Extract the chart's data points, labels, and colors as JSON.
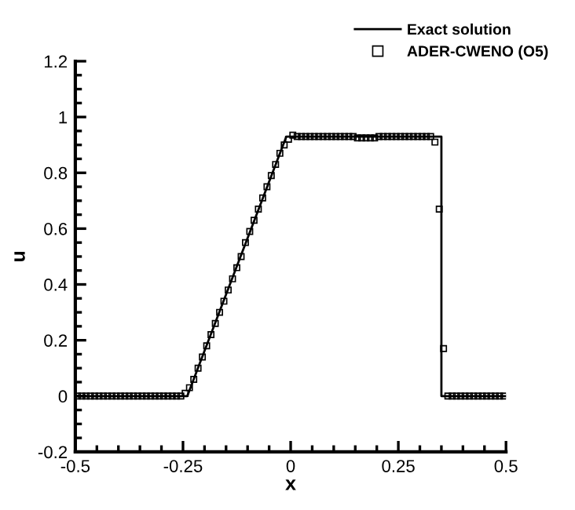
{
  "chart_data": {
    "type": "line",
    "xlabel": "x",
    "ylabel": "u",
    "xlim": [
      -0.5,
      0.5
    ],
    "ylim": [
      -0.2,
      1.2
    ],
    "xticks": [
      {
        "value": -0.5,
        "label": "-0.5"
      },
      {
        "value": -0.25,
        "label": "-0.25"
      },
      0,
      0.25,
      0.5
    ],
    "yticks": [
      {
        "value": -0.2,
        "label": "-0.2"
      },
      0,
      0.2,
      0.4,
      0.6,
      0.8,
      1,
      1.2
    ],
    "grid": false,
    "legend": "top right",
    "series": [
      {
        "name": "Exact solution",
        "color": "#000000",
        "marker": "none",
        "line_style": "solid",
        "x": [
          -0.5,
          -0.24,
          -0.01,
          0.35,
          0.35,
          0.5
        ],
        "values": [
          0,
          0,
          0.93,
          0.93,
          0,
          0
        ]
      },
      {
        "name": "ADER-CWENO (O5)",
        "type": "scatter",
        "color": "#000000",
        "marker": "square",
        "x": [
          -0.495,
          -0.485,
          -0.475,
          -0.465,
          -0.455,
          -0.445,
          -0.435,
          -0.425,
          -0.415,
          -0.405,
          -0.395,
          -0.385,
          -0.375,
          -0.365,
          -0.355,
          -0.345,
          -0.335,
          -0.325,
          -0.315,
          -0.305,
          -0.295,
          -0.285,
          -0.275,
          -0.265,
          -0.255,
          -0.245,
          -0.235,
          -0.225,
          -0.215,
          -0.205,
          -0.195,
          -0.185,
          -0.175,
          -0.165,
          -0.155,
          -0.145,
          -0.135,
          -0.125,
          -0.115,
          -0.105,
          -0.095,
          -0.085,
          -0.075,
          -0.065,
          -0.055,
          -0.045,
          -0.035,
          -0.025,
          -0.015,
          -0.005,
          0.005,
          0.015,
          0.025,
          0.035,
          0.045,
          0.055,
          0.065,
          0.075,
          0.085,
          0.095,
          0.105,
          0.115,
          0.125,
          0.135,
          0.145,
          0.155,
          0.165,
          0.175,
          0.185,
          0.195,
          0.205,
          0.215,
          0.225,
          0.235,
          0.245,
          0.255,
          0.265,
          0.275,
          0.285,
          0.295,
          0.305,
          0.315,
          0.325,
          0.335,
          0.345,
          0.355,
          0.365,
          0.375,
          0.385,
          0.395,
          0.405,
          0.415,
          0.425,
          0.435,
          0.445,
          0.455,
          0.465,
          0.475,
          0.485,
          0.495
        ],
        "values": [
          0,
          0,
          0,
          0,
          0,
          0,
          0,
          0,
          0,
          0,
          0,
          0,
          0,
          0,
          0,
          0,
          0,
          0,
          0,
          0,
          0,
          0,
          0,
          0,
          0,
          0.01,
          0.03,
          0.06,
          0.1,
          0.14,
          0.18,
          0.22,
          0.26,
          0.3,
          0.34,
          0.38,
          0.42,
          0.46,
          0.5,
          0.55,
          0.59,
          0.63,
          0.67,
          0.71,
          0.75,
          0.79,
          0.83,
          0.87,
          0.9,
          0.92,
          0.935,
          0.93,
          0.93,
          0.93,
          0.93,
          0.93,
          0.93,
          0.93,
          0.93,
          0.93,
          0.93,
          0.93,
          0.93,
          0.93,
          0.93,
          0.925,
          0.925,
          0.925,
          0.925,
          0.925,
          0.93,
          0.93,
          0.93,
          0.93,
          0.93,
          0.93,
          0.93,
          0.93,
          0.93,
          0.93,
          0.93,
          0.93,
          0.93,
          0.91,
          0.67,
          0.17,
          0,
          0,
          0,
          0,
          0,
          0,
          0,
          0,
          0,
          0,
          0,
          0,
          0,
          0
        ]
      }
    ]
  }
}
